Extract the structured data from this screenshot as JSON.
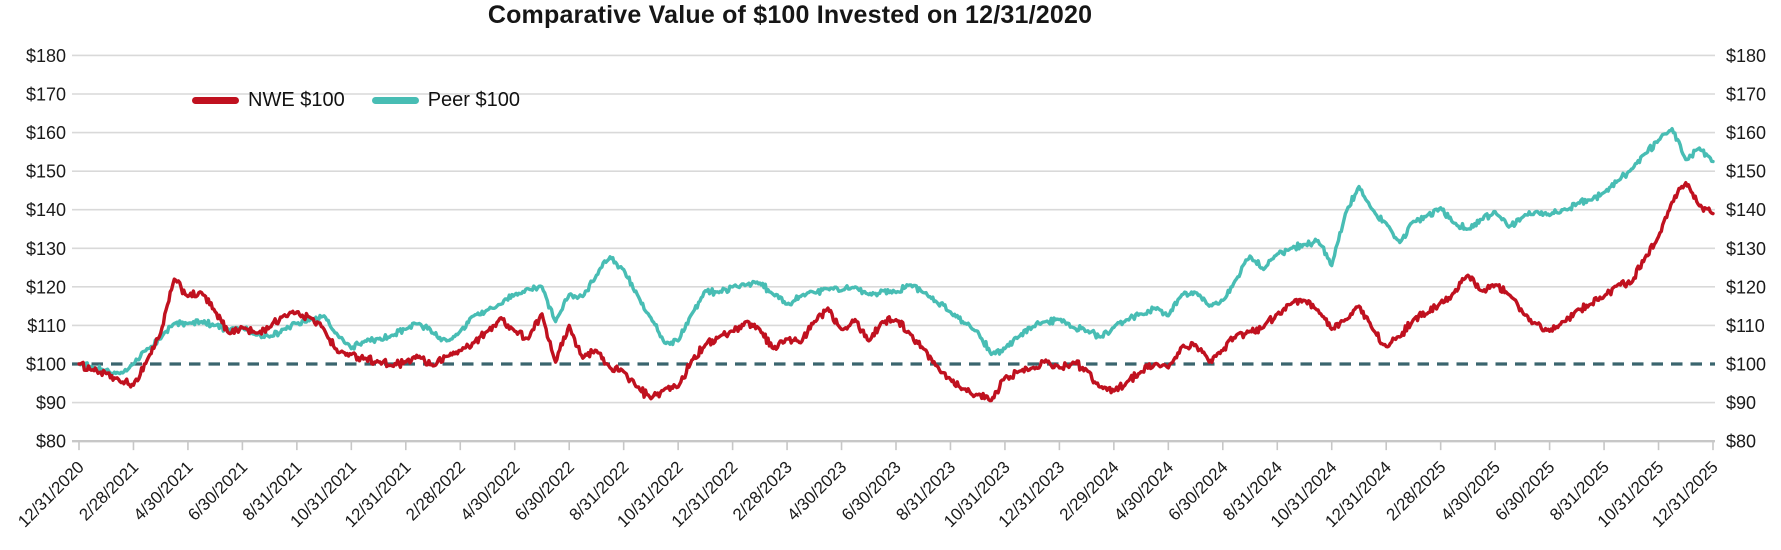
{
  "chart_data": {
    "type": "line",
    "title": "Comparative Value of $100 Invested on 12/31/2020",
    "xlabel": "",
    "ylabel": "",
    "ylim": [
      80,
      180
    ],
    "grid": true,
    "legend_position": "top-left",
    "baseline": {
      "value": 100,
      "style": "dashed",
      "color": "#3a656e"
    },
    "x_start": "12/31/2020",
    "x_end": "12/31/2025",
    "sample_interval_months": 0.5,
    "x_tick_labels": [
      "12/31/2020",
      "2/28/2021",
      "4/30/2021",
      "6/30/2021",
      "8/31/2021",
      "10/31/2021",
      "12/31/2021",
      "2/28/2022",
      "4/30/2022",
      "6/30/2022",
      "8/31/2022",
      "10/31/2022",
      "12/31/2022",
      "2/28/2023",
      "4/30/2023",
      "6/30/2023",
      "8/31/2023",
      "10/31/2023",
      "12/31/2023",
      "2/29/2024",
      "4/30/2024",
      "6/30/2024",
      "8/31/2024",
      "10/31/2024",
      "12/31/2024",
      "2/28/2025",
      "4/30/2025",
      "6/30/2025",
      "8/31/2025",
      "10/31/2025",
      "12/31/2025"
    ],
    "y_tick_values": [
      180,
      170,
      160,
      150,
      140,
      130,
      120,
      110,
      100,
      90,
      80
    ],
    "y_tick_labels": [
      "$180",
      "$170",
      "$160",
      "$150",
      "$140",
      "$130",
      "$120",
      "$110",
      "$100",
      "$90",
      "$80"
    ],
    "series": [
      {
        "name": "NWE $100",
        "color": "#c0111f",
        "values": [
          100,
          98.5,
          97.5,
          95.5,
          94.5,
          101,
          108,
          122,
          117.5,
          118.5,
          113.5,
          108,
          109.5,
          108,
          109.5,
          112.5,
          113.5,
          112,
          109,
          103,
          102.5,
          101.5,
          100.5,
          99.5,
          100.5,
          102,
          99.5,
          102,
          103.5,
          105.5,
          108.5,
          112,
          108.5,
          106.5,
          113,
          100.5,
          110,
          101.5,
          103.5,
          99,
          98,
          94,
          91,
          93.5,
          94,
          101,
          105,
          107,
          108.5,
          111,
          109,
          104,
          106.5,
          105.5,
          111,
          114.5,
          109,
          111.5,
          106,
          111,
          111.5,
          108,
          104,
          99.5,
          96,
          93.5,
          92,
          90.5,
          96.5,
          98,
          99,
          101,
          99,
          100.5,
          98.5,
          94,
          93,
          95.5,
          98,
          100,
          99,
          104.5,
          105,
          100.5,
          103.5,
          107.5,
          108.5,
          109.5,
          113,
          115.5,
          116.5,
          114,
          109,
          111.5,
          115,
          109,
          104.5,
          107,
          111.5,
          113,
          116,
          118.5,
          123,
          119,
          120.5,
          118,
          113.5,
          110.5,
          108.5,
          111,
          114,
          115.5,
          117.5,
          120.5,
          121,
          127.5,
          133,
          142,
          147,
          141,
          139
        ]
      },
      {
        "name": "Peer $100",
        "color": "#48bdb4",
        "values": [
          100,
          99,
          98.5,
          97.5,
          100,
          104,
          106.5,
          110.5,
          110.5,
          111,
          110,
          109,
          109.5,
          107.5,
          107,
          109,
          110.5,
          111.5,
          112.5,
          107.5,
          104,
          106,
          106.5,
          107.5,
          109,
          110.5,
          108,
          106,
          108.5,
          112.5,
          114,
          115.5,
          118,
          119.5,
          120,
          111,
          118,
          117.5,
          123,
          127.8,
          124.5,
          118,
          112,
          105.5,
          106,
          113,
          119,
          118.5,
          120,
          120.5,
          121,
          118,
          115.5,
          117.5,
          118.5,
          119.5,
          119,
          120,
          118,
          119,
          118.5,
          120.5,
          118.5,
          116,
          113.5,
          110.5,
          108.5,
          102.5,
          104,
          107,
          109.5,
          111,
          111.5,
          109.5,
          108.5,
          107,
          109.5,
          111.5,
          113,
          114.5,
          112.5,
          118,
          118.5,
          115,
          116.5,
          122,
          128,
          124.5,
          128.5,
          130,
          131,
          132,
          125.5,
          139,
          146,
          140,
          136.5,
          131.5,
          137,
          138.5,
          140.5,
          136.5,
          135,
          137.5,
          139.5,
          135.5,
          138,
          139.5,
          138.5,
          140,
          141.5,
          142.5,
          144.5,
          147.5,
          150.5,
          154.5,
          158,
          161,
          153,
          156,
          152.5
        ]
      }
    ]
  },
  "colors": {
    "gridline": "#d9d9d9",
    "axis_line": "#c7c7c7",
    "tick": "#c7c7c7",
    "label_text": "#1a1a1a",
    "title_text": "#161616",
    "background": "#ffffff"
  }
}
